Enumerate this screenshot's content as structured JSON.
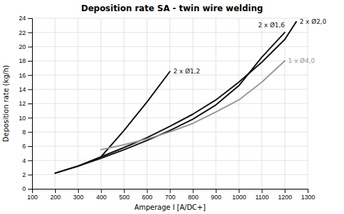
{
  "chart_data": {
    "type": "line",
    "title": "Deposition rate SA - twin wire welding",
    "xlabel": "Amperage I [A/DC+]",
    "ylabel": "Deposition rate (kg/h)",
    "xlim": [
      100,
      1300
    ],
    "ylim": [
      0,
      24
    ],
    "xticks": [
      100,
      200,
      300,
      400,
      500,
      600,
      700,
      800,
      900,
      1000,
      1100,
      1200,
      1300
    ],
    "yticks": [
      0,
      2,
      4,
      6,
      8,
      10,
      12,
      14,
      16,
      18,
      20,
      22,
      24
    ],
    "grid": true,
    "series": [
      {
        "name": "2 x Ø1,2",
        "color": "#111111",
        "x": [
          400,
          500,
          600,
          700
        ],
        "values": [
          4.5,
          8.2,
          12.2,
          16.5
        ]
      },
      {
        "name": "2 x Ø1,6",
        "color": "#111111",
        "x": [
          200,
          300,
          400,
          500,
          600,
          700,
          800,
          900,
          1000,
          1100,
          1200
        ],
        "values": [
          2.2,
          3.2,
          4.3,
          5.5,
          6.8,
          8.2,
          9.8,
          11.8,
          14.5,
          18.5,
          22.0
        ]
      },
      {
        "name": "2 x Ø2,0",
        "color": "#111111",
        "x": [
          200,
          300,
          400,
          500,
          600,
          700,
          800,
          900,
          1000,
          1100,
          1200,
          1250
        ],
        "values": [
          2.2,
          3.2,
          4.5,
          5.8,
          7.2,
          8.8,
          10.5,
          12.5,
          15.0,
          17.8,
          21.0,
          23.5
        ]
      },
      {
        "name": "1 x Ø4,0",
        "color": "#999999",
        "x": [
          400,
          500,
          600,
          700,
          800,
          900,
          1000,
          1100,
          1200
        ],
        "values": [
          5.5,
          6.2,
          7.0,
          8.0,
          9.2,
          10.8,
          12.5,
          15.0,
          18.0
        ]
      }
    ]
  }
}
